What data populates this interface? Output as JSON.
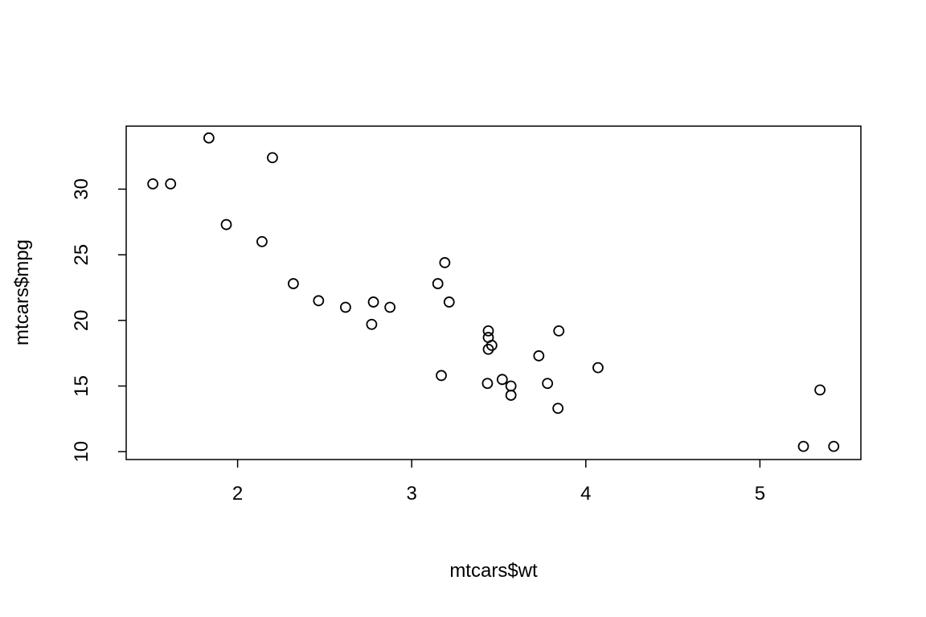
{
  "chart_data": {
    "type": "scatter",
    "title": "",
    "xlabel": "mtcars$wt",
    "ylabel": "mtcars$mpg",
    "xlim": [
      1.36,
      5.58
    ],
    "ylim": [
      9.4,
      34.8
    ],
    "xticks": [
      2,
      3,
      4,
      5
    ],
    "yticks": [
      10,
      15,
      20,
      25,
      30
    ],
    "xtick_labels": [
      "2",
      "3",
      "4",
      "5"
    ],
    "ytick_labels": [
      "10",
      "15",
      "20",
      "25",
      "30"
    ],
    "grid": false,
    "legend": "none",
    "marker": "open-circle",
    "point_color": "#000000",
    "series": [
      {
        "x": [
          2.62,
          2.875,
          2.32,
          3.215,
          3.44,
          3.46,
          3.57,
          3.19,
          3.15,
          3.44,
          3.44,
          4.07,
          3.73,
          3.78,
          5.25,
          5.424,
          5.345,
          2.2,
          1.615,
          1.835,
          2.465,
          3.52,
          3.435,
          3.84,
          3.845,
          1.935,
          2.14,
          1.513,
          3.17,
          2.77,
          3.57,
          2.78
        ],
        "y": [
          21.0,
          21.0,
          22.8,
          21.4,
          18.7,
          18.1,
          14.3,
          24.4,
          22.8,
          19.2,
          17.8,
          16.4,
          17.3,
          15.2,
          10.4,
          10.4,
          14.7,
          32.4,
          30.4,
          33.9,
          21.5,
          15.5,
          15.2,
          13.3,
          19.2,
          27.3,
          26.0,
          30.4,
          15.8,
          19.7,
          15.0,
          21.4
        ]
      }
    ]
  }
}
